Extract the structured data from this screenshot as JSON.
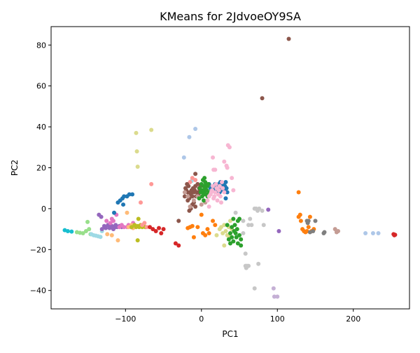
{
  "chart_data": {
    "type": "scatter",
    "title": "KMeans for 2JdvoeOY9SA",
    "xlabel": "PC1",
    "ylabel": "PC2",
    "xlim": [
      -198,
      274
    ],
    "ylim": [
      -49,
      89
    ],
    "xticks": [
      -100,
      0,
      100,
      200
    ],
    "yticks": [
      -40,
      -20,
      0,
      20,
      40,
      60,
      80
    ],
    "grid": false,
    "legend": "none",
    "series": [
      {
        "color": "#17becf",
        "points": [
          [
            -180,
            -10.5
          ],
          [
            -176,
            -11
          ],
          [
            -171,
            -11.2
          ]
        ]
      },
      {
        "color": "#98df8a",
        "points": [
          [
            -164,
            -11.5
          ],
          [
            -160,
            -11.8
          ],
          [
            -156,
            -12
          ],
          [
            -152,
            -11
          ],
          [
            -150,
            -6.5
          ],
          [
            -148,
            -10
          ],
          [
            -146,
            -12.5
          ]
        ]
      },
      {
        "color": "#9edae5",
        "points": [
          [
            -145,
            -12.5
          ],
          [
            -142,
            -13
          ],
          [
            -139,
            -13.2
          ],
          [
            -136,
            -13.5
          ],
          [
            -133,
            -13.8
          ],
          [
            -131,
            -11
          ],
          [
            -13,
            13.5
          ]
        ]
      },
      {
        "color": "#9467bd",
        "points": [
          [
            -135,
            -3
          ],
          [
            -132,
            -4
          ],
          [
            -131,
            -10
          ],
          [
            -128,
            -8.5
          ],
          [
            -126,
            -9.5
          ],
          [
            -123,
            -8
          ],
          [
            -121,
            -9.5
          ],
          [
            -118,
            -8.5
          ],
          [
            -116,
            -10
          ],
          [
            -113,
            -9
          ],
          [
            -111,
            -9
          ],
          [
            -108,
            -8.5
          ],
          [
            -105,
            -9
          ],
          [
            -113,
            -8
          ],
          [
            88,
            -0.5
          ],
          [
            102,
            -11
          ]
        ]
      },
      {
        "color": "#e377c2",
        "points": [
          [
            -125,
            -6
          ],
          [
            -120,
            -7
          ],
          [
            -118,
            -5
          ],
          [
            -116,
            -6
          ],
          [
            -112,
            -3
          ],
          [
            -108,
            -9
          ],
          [
            -105,
            -8
          ],
          [
            -102,
            -9
          ],
          [
            -98,
            -9
          ],
          [
            -96,
            -8
          ],
          [
            -93,
            -9
          ],
          [
            -90,
            -7
          ]
        ]
      },
      {
        "color": "#1f77b4",
        "points": [
          [
            -115,
            -2
          ],
          [
            -110,
            3
          ],
          [
            -107,
            4
          ],
          [
            -104,
            5
          ],
          [
            -102,
            6
          ],
          [
            -98,
            6
          ],
          [
            -95,
            7
          ],
          [
            -91,
            7
          ],
          [
            -103,
            2
          ],
          [
            10,
            12
          ],
          [
            12,
            10
          ],
          [
            14,
            10.5
          ],
          [
            16,
            11
          ],
          [
            17,
            9
          ],
          [
            18,
            12
          ],
          [
            19,
            8.5
          ],
          [
            20,
            11.5
          ],
          [
            21,
            10
          ],
          [
            22,
            9
          ],
          [
            23,
            12
          ],
          [
            24,
            8
          ],
          [
            25,
            13
          ],
          [
            25,
            10.5
          ],
          [
            26,
            9
          ],
          [
            27,
            11
          ],
          [
            28,
            10
          ],
          [
            29,
            12.5
          ],
          [
            30,
            9
          ],
          [
            31,
            11
          ],
          [
            32,
            13
          ],
          [
            33,
            10
          ],
          [
            34,
            8
          ],
          [
            32,
            5
          ]
        ]
      },
      {
        "color": "#ffbb78",
        "points": [
          [
            -124,
            -12.5
          ],
          [
            -118,
            -13
          ],
          [
            -110,
            -15.5
          ],
          [
            -98,
            -2
          ],
          [
            -96,
            -9
          ],
          [
            -92,
            -8
          ],
          [
            -90,
            -9.5
          ]
        ]
      },
      {
        "color": "#bcbd22",
        "points": [
          [
            -92,
            -9
          ],
          [
            -88,
            -8
          ],
          [
            -86,
            -9
          ],
          [
            -84,
            -8.5
          ],
          [
            -82,
            -9
          ],
          [
            -80,
            -8
          ],
          [
            -78,
            -9
          ],
          [
            -76,
            -8.5
          ],
          [
            -74,
            -9
          ],
          [
            -83,
            -5
          ],
          [
            -84,
            -15.5
          ]
        ]
      },
      {
        "color": "#dbdb8d",
        "points": [
          [
            -86,
            37
          ],
          [
            -66,
            38.5
          ],
          [
            -85,
            28
          ],
          [
            -84,
            20.5
          ],
          [
            20,
            -13
          ],
          [
            24,
            -10
          ],
          [
            26,
            -9
          ],
          [
            28,
            -12
          ],
          [
            30,
            -8
          ],
          [
            32,
            -11
          ],
          [
            34,
            -13
          ],
          [
            36,
            -9
          ],
          [
            37,
            -14
          ],
          [
            38,
            -6
          ],
          [
            40,
            -10
          ],
          [
            30,
            -18
          ]
        ]
      },
      {
        "color": "#ff9896",
        "points": [
          [
            -80,
            3
          ],
          [
            -78,
            -8
          ],
          [
            -75,
            -7
          ],
          [
            -72,
            -9
          ],
          [
            -66,
            12
          ],
          [
            -15,
            13
          ],
          [
            -12,
            15
          ],
          [
            -10,
            10
          ],
          [
            -8,
            14
          ]
        ]
      },
      {
        "color": "#d62728",
        "points": [
          [
            -68,
            -9
          ],
          [
            -64,
            -10
          ],
          [
            -60,
            -11
          ],
          [
            -56,
            -9.5
          ],
          [
            -53,
            -12
          ],
          [
            -50,
            -10
          ],
          [
            -34,
            -17
          ],
          [
            -30,
            -18
          ],
          [
            253,
            -12.5
          ],
          [
            254,
            -13
          ],
          [
            255,
            -12.8
          ]
        ]
      },
      {
        "color": "#ff7f0e",
        "points": [
          [
            -18,
            -9.5
          ],
          [
            -15,
            -9
          ],
          [
            -12,
            -8.5
          ],
          [
            -10,
            -14
          ],
          [
            -5,
            -9
          ],
          [
            0,
            -3
          ],
          [
            2,
            -12
          ],
          [
            5,
            -13
          ],
          [
            8,
            -10
          ],
          [
            10,
            -12
          ],
          [
            15,
            -6
          ],
          [
            18,
            -8
          ],
          [
            128,
            8
          ],
          [
            128,
            -4
          ],
          [
            130,
            -3
          ],
          [
            131,
            -6
          ],
          [
            133,
            -10
          ],
          [
            135,
            -11
          ],
          [
            137,
            -11.5
          ],
          [
            139,
            -11
          ],
          [
            141,
            -9
          ],
          [
            143,
            -4
          ],
          [
            145,
            -11
          ],
          [
            148,
            -10
          ]
        ]
      },
      {
        "color": "#8c564b",
        "points": [
          [
            -30,
            -6
          ],
          [
            -22,
            6
          ],
          [
            -21,
            10
          ],
          [
            -20,
            9
          ],
          [
            -19,
            12
          ],
          [
            -18,
            8
          ],
          [
            -17,
            11
          ],
          [
            -16,
            5
          ],
          [
            -15,
            8
          ],
          [
            -14,
            7
          ],
          [
            -13,
            9
          ],
          [
            -12,
            6
          ],
          [
            -11,
            10
          ],
          [
            -10,
            8
          ],
          [
            -9,
            9
          ],
          [
            -8,
            11
          ],
          [
            -7,
            6
          ],
          [
            -6,
            8
          ],
          [
            -5,
            12
          ],
          [
            -4,
            7
          ],
          [
            -3,
            10
          ],
          [
            -2,
            9
          ],
          [
            -1,
            11
          ],
          [
            -18,
            4
          ],
          [
            -16,
            -1
          ],
          [
            -14,
            0
          ],
          [
            -12,
            2
          ],
          [
            -10,
            3
          ],
          [
            -8,
            17
          ],
          [
            -8,
            1
          ],
          [
            115,
            83
          ],
          [
            80,
            54
          ]
        ]
      },
      {
        "color": "#c49c94",
        "points": [
          [
            -22,
            8
          ],
          [
            -18,
            6
          ],
          [
            -15,
            1
          ],
          [
            -10,
            4
          ],
          [
            -5,
            6
          ],
          [
            0,
            2
          ],
          [
            5,
            3
          ],
          [
            176,
            -10
          ],
          [
            178,
            -11.5
          ],
          [
            180,
            -11
          ]
        ]
      },
      {
        "color": "#2ca02c",
        "points": [
          [
            -3,
            5
          ],
          [
            -2,
            10
          ],
          [
            -1,
            8
          ],
          [
            0,
            12
          ],
          [
            1,
            6
          ],
          [
            2,
            9
          ],
          [
            2,
            14
          ],
          [
            3,
            7
          ],
          [
            3,
            11
          ],
          [
            4,
            8
          ],
          [
            4,
            15
          ],
          [
            5,
            10
          ],
          [
            5,
            13
          ],
          [
            6,
            7
          ],
          [
            6,
            12
          ],
          [
            7,
            9
          ],
          [
            8,
            11
          ],
          [
            8,
            6
          ],
          [
            3,
            4
          ],
          [
            9,
            12
          ],
          [
            10,
            8
          ],
          [
            34,
            -8
          ],
          [
            36,
            -15
          ],
          [
            38,
            -12
          ],
          [
            38,
            -17
          ],
          [
            40,
            -9
          ],
          [
            40,
            -14
          ],
          [
            42,
            -16
          ],
          [
            42,
            -5
          ],
          [
            43,
            -11
          ],
          [
            44,
            -8
          ],
          [
            45,
            -12
          ],
          [
            46,
            -14
          ],
          [
            47,
            -10
          ],
          [
            48,
            -6
          ],
          [
            48,
            -17
          ],
          [
            50,
            -13
          ],
          [
            50,
            -5
          ],
          [
            52,
            -15
          ],
          [
            52,
            -18
          ]
        ]
      },
      {
        "color": "#f7b6d2",
        "points": [
          [
            10,
            1
          ],
          [
            12,
            7
          ],
          [
            13,
            8
          ],
          [
            14,
            9
          ],
          [
            15,
            11
          ],
          [
            16,
            5
          ],
          [
            17,
            6
          ],
          [
            18,
            8
          ],
          [
            19,
            12
          ],
          [
            20,
            10
          ],
          [
            21,
            4
          ],
          [
            22,
            7
          ],
          [
            23,
            9
          ],
          [
            24,
            11
          ],
          [
            25,
            6
          ],
          [
            26,
            3
          ],
          [
            27,
            13
          ],
          [
            28,
            10
          ],
          [
            30,
            8
          ],
          [
            8,
            4
          ],
          [
            10,
            6
          ],
          [
            15,
            25
          ],
          [
            16,
            19
          ],
          [
            18,
            19
          ],
          [
            30,
            23
          ],
          [
            33,
            21
          ],
          [
            34,
            20
          ],
          [
            35,
            31
          ],
          [
            37,
            30
          ],
          [
            40,
            15
          ],
          [
            42,
            9
          ]
        ]
      },
      {
        "color": "#c7c7c7",
        "points": [
          [
            55,
            -12
          ],
          [
            58,
            -22
          ],
          [
            58,
            -28
          ],
          [
            59,
            -29
          ],
          [
            60,
            -28
          ],
          [
            62,
            -28
          ],
          [
            62,
            -8
          ],
          [
            64,
            -5
          ],
          [
            66,
            -8
          ],
          [
            70,
            0
          ],
          [
            72,
            0
          ],
          [
            74,
            -1
          ],
          [
            76,
            0
          ],
          [
            80,
            -1
          ],
          [
            82,
            -8
          ],
          [
            75,
            -27
          ],
          [
            70,
            -39
          ],
          [
            45,
            -2
          ],
          [
            55,
            -6
          ]
        ]
      },
      {
        "color": "#aec7e8",
        "points": [
          [
            -8,
            39
          ],
          [
            -16,
            35
          ],
          [
            -23,
            25
          ],
          [
            216,
            -12
          ],
          [
            226,
            -12
          ],
          [
            233,
            -12
          ]
        ]
      },
      {
        "color": "#7f7f7f",
        "points": [
          [
            139,
            -6
          ],
          [
            140,
            -7
          ],
          [
            141,
            -6
          ],
          [
            143,
            -11.5
          ],
          [
            147,
            -11
          ],
          [
            150,
            -6
          ],
          [
            161,
            -12
          ],
          [
            162,
            -11.5
          ]
        ]
      },
      {
        "color": "#c5b0d5",
        "points": [
          [
            95,
            -39
          ],
          [
            96,
            -43
          ],
          [
            100,
            -43
          ]
        ]
      }
    ]
  }
}
